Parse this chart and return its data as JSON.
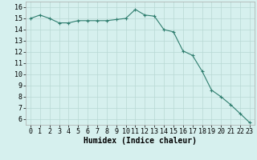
{
  "x": [
    0,
    1,
    2,
    3,
    4,
    5,
    6,
    7,
    8,
    9,
    10,
    11,
    12,
    13,
    14,
    15,
    16,
    17,
    18,
    19,
    20,
    21,
    22,
    23
  ],
  "y": [
    15.0,
    15.3,
    15.0,
    14.6,
    14.6,
    14.8,
    14.8,
    14.8,
    14.8,
    14.9,
    15.0,
    15.8,
    15.3,
    15.2,
    14.0,
    13.8,
    12.1,
    11.7,
    10.3,
    8.6,
    8.0,
    7.3,
    6.5,
    5.7
  ],
  "line_color": "#2e7d6e",
  "marker": "+",
  "marker_size": 3,
  "bg_color": "#d6f0ee",
  "grid_color": "#b8d8d4",
  "xlabel": "Humidex (Indice chaleur)",
  "xlabel_fontsize": 7,
  "ylim": [
    5.5,
    16.5
  ],
  "xlim": [
    -0.5,
    23.5
  ],
  "yticks": [
    6,
    7,
    8,
    9,
    10,
    11,
    12,
    13,
    14,
    15,
    16
  ],
  "xticks": [
    0,
    1,
    2,
    3,
    4,
    5,
    6,
    7,
    8,
    9,
    10,
    11,
    12,
    13,
    14,
    15,
    16,
    17,
    18,
    19,
    20,
    21,
    22,
    23
  ],
  "tick_fontsize": 6,
  "line_width": 0.8,
  "marker_edge_width": 0.8
}
